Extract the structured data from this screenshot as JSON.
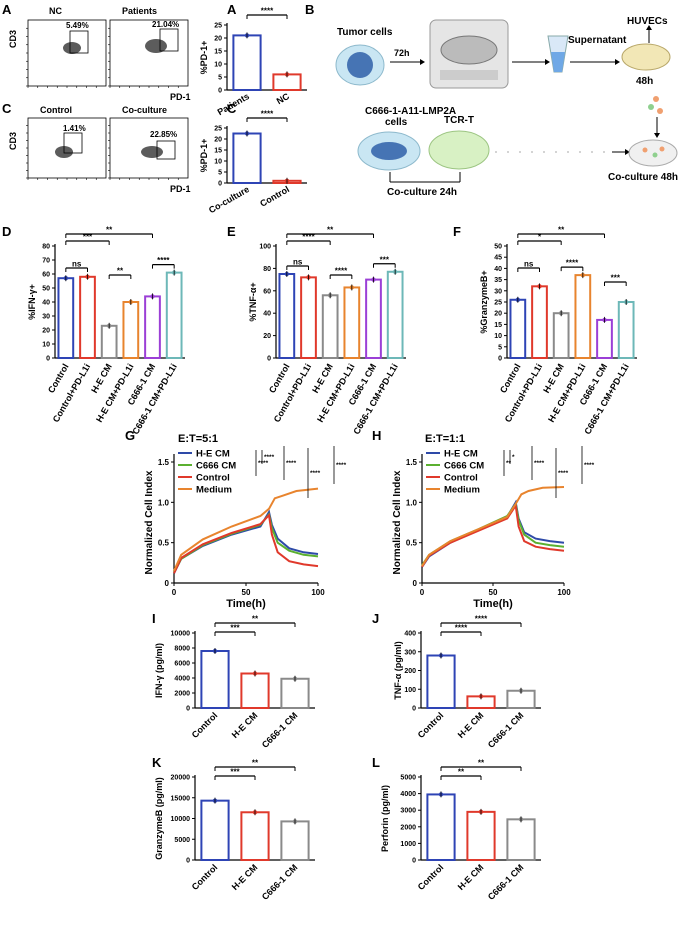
{
  "colors": {
    "blue": "#2E44B5",
    "red": "#E0392B",
    "grey": "#8A8A8A",
    "orange": "#E8842E",
    "purple": "#9B3FD6",
    "teal": "#6DB8B8",
    "green": "#5BB030",
    "dblue": "#2E4AA8"
  },
  "flow": {
    "A": {
      "label": "A",
      "ylabel": "CD3",
      "xlabel": "PD-1",
      "panels": [
        {
          "title": "NC",
          "pct": "5.49%"
        },
        {
          "title": "Patients",
          "pct": "21.04%"
        }
      ]
    },
    "C": {
      "label": "C",
      "ylabel": "CD3",
      "xlabel": "PD-1",
      "panels": [
        {
          "title": "Control",
          "pct": "1.41%"
        },
        {
          "title": "Co-culture",
          "pct": "22.85%"
        }
      ]
    }
  },
  "schematic": {
    "label": "B",
    "tumor": "Tumor cells",
    "t72": "72h",
    "supernatant": "Supernatant",
    "huvecs": "HUVECs",
    "t48": "48h",
    "cells": "C666-1-A11-LMP2A",
    "cells2": "cells",
    "tcrt": "TCR-T",
    "coculture24": "Co-culture 24h",
    "coculture48": "Co-culture 48h"
  },
  "chart_data": [
    {
      "id": "A",
      "type": "bar",
      "categories": [
        "Patients",
        "NC"
      ],
      "values": [
        21,
        6
      ],
      "ylabel": "%PD-1+",
      "ylim": [
        0,
        25
      ],
      "ticks": [
        0,
        5,
        10,
        15,
        20,
        25
      ],
      "sig": [
        {
          "text": "****",
          "a": 0,
          "b": 1
        }
      ]
    },
    {
      "id": "C",
      "type": "bar",
      "categories": [
        "Co-culture",
        "Control"
      ],
      "values": [
        22.5,
        1
      ],
      "ylabel": "%PD-1+",
      "ylim": [
        0,
        25
      ],
      "ticks": [
        0,
        5,
        10,
        15,
        20,
        25
      ],
      "sig": [
        {
          "text": "****",
          "a": 0,
          "b": 1
        }
      ]
    },
    {
      "id": "D",
      "type": "bar",
      "categories": [
        "Control",
        "Control+PD-L1i",
        "H-E CM",
        "H-E CM+PD-L1i",
        "C666-1 CM",
        "C666-1 CM+PD-L1i"
      ],
      "values": [
        57,
        58,
        23,
        40,
        44,
        61
      ],
      "ylabel": "%IFN-γ+",
      "ylim": [
        0,
        80
      ],
      "ticks": [
        0,
        10,
        20,
        30,
        40,
        50,
        60,
        70,
        80
      ],
      "sig": [
        {
          "text": "ns",
          "a": 0,
          "b": 1
        },
        {
          "text": "***",
          "a": 0,
          "b": 2
        },
        {
          "text": "**",
          "a": 2,
          "b": 3
        },
        {
          "text": "**",
          "a": 0,
          "b": 4
        },
        {
          "text": "****",
          "a": 4,
          "b": 5
        }
      ]
    },
    {
      "id": "E",
      "type": "bar",
      "categories": [
        "Control",
        "Control+PD-L1i",
        "H-E CM",
        "H-E CM+PD-L1i",
        "C666-1 CM",
        "C666-1 CM+PD-L1i"
      ],
      "values": [
        75,
        72,
        56,
        63,
        70,
        77
      ],
      "ylabel": "%TNF-α+",
      "ylim": [
        0,
        100
      ],
      "ticks": [
        0,
        20,
        40,
        60,
        80,
        100
      ],
      "sig": [
        {
          "text": "ns",
          "a": 0,
          "b": 1
        },
        {
          "text": "****",
          "a": 0,
          "b": 2
        },
        {
          "text": "****",
          "a": 2,
          "b": 3
        },
        {
          "text": "**",
          "a": 0,
          "b": 4
        },
        {
          "text": "***",
          "a": 4,
          "b": 5
        }
      ]
    },
    {
      "id": "F",
      "type": "bar",
      "categories": [
        "Control",
        "Control+PD-L1i",
        "H-E CM",
        "H-E CM+PD-L1i",
        "C666-1 CM",
        "C666-1 CM+PD-L1i"
      ],
      "values": [
        26,
        32,
        20,
        37,
        17,
        25
      ],
      "ylabel": "%GranzymeB+",
      "ylim": [
        0,
        50
      ],
      "ticks": [
        0,
        5,
        10,
        15,
        20,
        25,
        30,
        35,
        40,
        45,
        50
      ],
      "sig": [
        {
          "text": "ns",
          "a": 0,
          "b": 1
        },
        {
          "text": "*",
          "a": 0,
          "b": 2
        },
        {
          "text": "****",
          "a": 2,
          "b": 3
        },
        {
          "text": "**",
          "a": 0,
          "b": 4
        },
        {
          "text": "***",
          "a": 4,
          "b": 5
        }
      ]
    },
    {
      "id": "G",
      "type": "line",
      "title": "E:T=5:1",
      "xlabel": "Time(h)",
      "ylabel": "Normalized Cell Index",
      "xlim": [
        0,
        100
      ],
      "ylim": [
        0,
        1.5
      ],
      "xticks": [
        0,
        50,
        100
      ],
      "yticks": [
        0,
        0.5,
        1.0,
        1.5
      ],
      "sig": [
        "****",
        "****",
        "****",
        "****",
        "****"
      ],
      "series": [
        {
          "name": "H-E CM",
          "color": "#2E4AA8",
          "x": [
            0,
            5,
            20,
            40,
            60,
            66,
            68,
            72,
            80,
            90,
            100
          ],
          "y": [
            0.12,
            0.3,
            0.46,
            0.6,
            0.7,
            0.88,
            0.72,
            0.55,
            0.43,
            0.38,
            0.36
          ]
        },
        {
          "name": "C666 CM",
          "color": "#5BB030",
          "x": [
            0,
            5,
            20,
            40,
            60,
            66,
            68,
            72,
            80,
            90,
            100
          ],
          "y": [
            0.13,
            0.3,
            0.47,
            0.61,
            0.72,
            0.85,
            0.68,
            0.5,
            0.4,
            0.35,
            0.33
          ]
        },
        {
          "name": "Control",
          "color": "#E0392B",
          "x": [
            0,
            5,
            20,
            40,
            60,
            66,
            68,
            72,
            80,
            90,
            100
          ],
          "y": [
            0.12,
            0.31,
            0.48,
            0.62,
            0.73,
            0.84,
            0.6,
            0.38,
            0.27,
            0.23,
            0.21
          ]
        },
        {
          "name": "Medium",
          "color": "#E8842E",
          "x": [
            0,
            5,
            20,
            40,
            60,
            66,
            70,
            75,
            85,
            100
          ],
          "y": [
            0.15,
            0.35,
            0.54,
            0.7,
            0.83,
            0.92,
            1.05,
            1.08,
            1.14,
            1.17
          ]
        }
      ]
    },
    {
      "id": "H",
      "type": "line",
      "title": "E:T=1:1",
      "xlabel": "Time(h)",
      "ylabel": "Normalized Cell Index",
      "xlim": [
        0,
        100
      ],
      "ylim": [
        0,
        1.5
      ],
      "xticks": [
        0,
        50,
        100
      ],
      "yticks": [
        0,
        0.5,
        1.0,
        1.5
      ],
      "sig": [
        "**",
        "*",
        "****",
        "****",
        "****"
      ],
      "series": [
        {
          "name": "H-E CM",
          "color": "#2E4AA8",
          "x": [
            0,
            5,
            20,
            40,
            60,
            66,
            68,
            72,
            80,
            90,
            100
          ],
          "y": [
            0.2,
            0.33,
            0.5,
            0.66,
            0.82,
            1.0,
            0.8,
            0.63,
            0.55,
            0.52,
            0.5
          ]
        },
        {
          "name": "C666 CM",
          "color": "#5BB030",
          "x": [
            0,
            5,
            20,
            40,
            60,
            66,
            68,
            72,
            80,
            90,
            100
          ],
          "y": [
            0.22,
            0.35,
            0.52,
            0.67,
            0.83,
            0.98,
            0.78,
            0.6,
            0.5,
            0.47,
            0.45
          ]
        },
        {
          "name": "Control",
          "color": "#E0392B",
          "x": [
            0,
            5,
            20,
            40,
            60,
            66,
            68,
            72,
            80,
            90,
            100
          ],
          "y": [
            0.2,
            0.34,
            0.5,
            0.65,
            0.8,
            0.96,
            0.7,
            0.52,
            0.45,
            0.42,
            0.4
          ]
        },
        {
          "name": "Medium",
          "color": "#E8842E",
          "x": [
            0,
            5,
            20,
            40,
            60,
            66,
            70,
            75,
            85,
            100
          ],
          "y": [
            0.21,
            0.35,
            0.52,
            0.67,
            0.82,
            0.98,
            1.1,
            1.14,
            1.18,
            1.19
          ]
        }
      ]
    },
    {
      "id": "I",
      "type": "bar",
      "categories": [
        "Control",
        "H-E CM",
        "C666-1 CM"
      ],
      "values": [
        7600,
        4600,
        3900
      ],
      "ylabel": "IFN-γ (pg/ml)",
      "ylim": [
        0,
        10000
      ],
      "ticks": [
        0,
        2000,
        4000,
        6000,
        8000,
        10000
      ],
      "sig": [
        {
          "text": "***",
          "a": 0,
          "b": 1
        },
        {
          "text": "**",
          "a": 0,
          "b": 2
        }
      ]
    },
    {
      "id": "J",
      "type": "bar",
      "categories": [
        "Control",
        "H-E CM",
        "C666-1 CM"
      ],
      "values": [
        280,
        62,
        92
      ],
      "ylabel": "TNF-α (pg/ml)",
      "ylim": [
        0,
        400
      ],
      "ticks": [
        0,
        100,
        200,
        300,
        400
      ],
      "sig": [
        {
          "text": "****",
          "a": 0,
          "b": 1
        },
        {
          "text": "****",
          "a": 0,
          "b": 2
        }
      ]
    },
    {
      "id": "K",
      "type": "bar",
      "categories": [
        "Control",
        "H-E CM",
        "C666-1 CM"
      ],
      "values": [
        14300,
        11500,
        9300
      ],
      "ylabel": "GranzymeB (pg/ml)",
      "ylim": [
        0,
        20000
      ],
      "ticks": [
        0,
        5000,
        10000,
        15000,
        20000
      ],
      "sig": [
        {
          "text": "***",
          "a": 0,
          "b": 1
        },
        {
          "text": "**",
          "a": 0,
          "b": 2
        }
      ]
    },
    {
      "id": "L",
      "type": "bar",
      "categories": [
        "Control",
        "H-E CM",
        "C666-1 CM"
      ],
      "values": [
        3950,
        2900,
        2450
      ],
      "ylabel": "Perforin (pg/ml)",
      "ylim": [
        0,
        5000
      ],
      "ticks": [
        0,
        1000,
        2000,
        3000,
        4000,
        5000
      ],
      "sig": [
        {
          "text": "**",
          "a": 0,
          "b": 1
        },
        {
          "text": "**",
          "a": 0,
          "b": 2
        }
      ]
    }
  ]
}
